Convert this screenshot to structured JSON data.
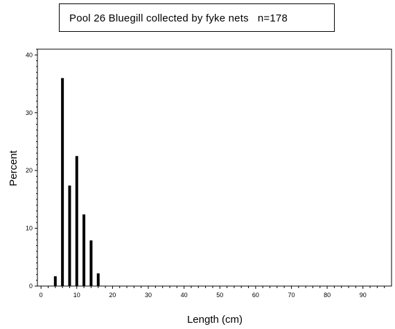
{
  "chart_data": {
    "type": "bar",
    "title": "Pool 26 Bluegill collected by fyke nets   n=178",
    "xlabel": "Length (cm)",
    "ylabel": "Percent",
    "x": [
      4,
      6,
      8,
      10,
      12,
      14,
      16
    ],
    "values": [
      1.7,
      36.0,
      17.4,
      22.5,
      12.4,
      7.9,
      2.2
    ],
    "xlim": [
      -1,
      98
    ],
    "ylim": [
      0,
      41
    ],
    "x_ticks": [
      0,
      10,
      20,
      30,
      40,
      50,
      60,
      70,
      80,
      90
    ],
    "y_ticks": [
      0,
      10,
      20,
      30,
      40
    ],
    "grid": false,
    "bar_color": "#000000"
  }
}
